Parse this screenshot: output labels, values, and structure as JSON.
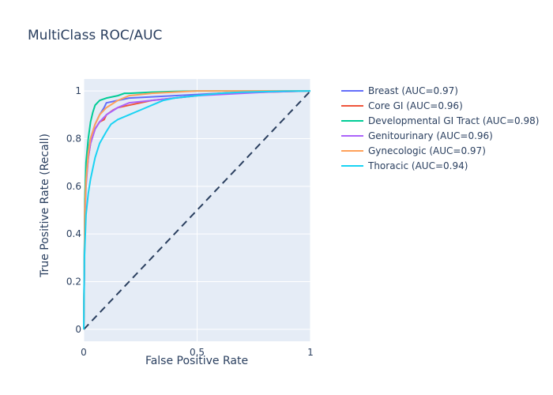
{
  "chart_data": {
    "type": "line",
    "title": "MultiClass ROC/AUC",
    "xlabel": "False Positive Rate",
    "ylabel": "True Positive Rate (Recall)",
    "xlim": [
      0,
      1
    ],
    "ylim": [
      -0.05,
      1.05
    ],
    "xticks": [
      0,
      0.5,
      1
    ],
    "xtick_labels": [
      "0",
      "0.5",
      "1"
    ],
    "yticks": [
      0,
      0.2,
      0.4,
      0.6,
      0.8,
      1
    ],
    "ytick_labels": [
      "0",
      "0.2",
      "0.4",
      "0.6",
      "0.8",
      "1"
    ],
    "grid": true,
    "legend_position": "right",
    "plot_background": "#e5ecf6",
    "series": [
      {
        "name": "Breast (AUC=0.97)",
        "color": "#636efa",
        "x": [
          0,
          0.005,
          0.01,
          0.02,
          0.03,
          0.05,
          0.07,
          0.09,
          0.1,
          0.15,
          0.2,
          0.3,
          0.4,
          0.5,
          0.6,
          0.7,
          0.8,
          0.9,
          1
        ],
        "y": [
          0,
          0.55,
          0.66,
          0.75,
          0.8,
          0.86,
          0.9,
          0.93,
          0.95,
          0.96,
          0.97,
          0.975,
          0.98,
          0.985,
          0.99,
          0.995,
          0.997,
          0.999,
          1
        ]
      },
      {
        "name": "Core GI (AUC=0.96)",
        "color": "#ef553b",
        "x": [
          0,
          0.005,
          0.01,
          0.02,
          0.03,
          0.05,
          0.07,
          0.09,
          0.1,
          0.13,
          0.15,
          0.2,
          0.25,
          0.3,
          0.4,
          0.5,
          0.6,
          0.8,
          1
        ],
        "y": [
          0,
          0.5,
          0.62,
          0.72,
          0.78,
          0.84,
          0.87,
          0.88,
          0.9,
          0.92,
          0.93,
          0.94,
          0.95,
          0.96,
          0.97,
          0.98,
          0.99,
          0.995,
          1
        ]
      },
      {
        "name": "Developmental GI Tract (AUC=0.98)",
        "color": "#00cc96",
        "x": [
          0,
          0.005,
          0.01,
          0.02,
          0.03,
          0.04,
          0.05,
          0.07,
          0.1,
          0.15,
          0.18,
          0.2,
          0.3,
          0.4,
          0.5,
          0.7,
          1
        ],
        "y": [
          0,
          0.55,
          0.7,
          0.8,
          0.87,
          0.91,
          0.94,
          0.96,
          0.97,
          0.98,
          0.99,
          0.99,
          0.995,
          0.998,
          1,
          1,
          1
        ]
      },
      {
        "name": "Genitourinary (AUC=0.96)",
        "color": "#ab63fa",
        "x": [
          0,
          0.005,
          0.01,
          0.02,
          0.03,
          0.05,
          0.07,
          0.1,
          0.15,
          0.2,
          0.3,
          0.4,
          0.5,
          0.6,
          0.7,
          0.8,
          1
        ],
        "y": [
          0,
          0.45,
          0.6,
          0.72,
          0.78,
          0.84,
          0.87,
          0.9,
          0.93,
          0.95,
          0.96,
          0.97,
          0.98,
          0.985,
          0.99,
          0.995,
          1
        ]
      },
      {
        "name": "Gynecologic (AUC=0.97)",
        "color": "#ffa15a",
        "x": [
          0,
          0.005,
          0.01,
          0.02,
          0.03,
          0.05,
          0.07,
          0.1,
          0.15,
          0.2,
          0.3,
          0.4,
          0.5,
          0.6,
          0.8,
          1
        ],
        "y": [
          0,
          0.5,
          0.62,
          0.74,
          0.8,
          0.86,
          0.9,
          0.93,
          0.96,
          0.98,
          0.99,
          0.995,
          1,
          1,
          1,
          1
        ]
      },
      {
        "name": "Thoracic (AUC=0.94)",
        "color": "#19d3f3",
        "x": [
          0,
          0.003,
          0.007,
          0.01,
          0.02,
          0.03,
          0.05,
          0.07,
          0.1,
          0.12,
          0.15,
          0.2,
          0.25,
          0.3,
          0.35,
          0.4,
          0.5,
          0.6,
          0.7,
          0.8,
          0.9,
          1
        ],
        "y": [
          0,
          0.3,
          0.4,
          0.48,
          0.57,
          0.63,
          0.72,
          0.78,
          0.83,
          0.86,
          0.88,
          0.9,
          0.92,
          0.94,
          0.96,
          0.97,
          0.98,
          0.99,
          0.995,
          0.997,
          0.999,
          1
        ]
      },
      {
        "role": "reference",
        "color": "#2a3f5f",
        "dashed": true,
        "x": [
          0,
          1
        ],
        "y": [
          0,
          1
        ]
      }
    ]
  }
}
